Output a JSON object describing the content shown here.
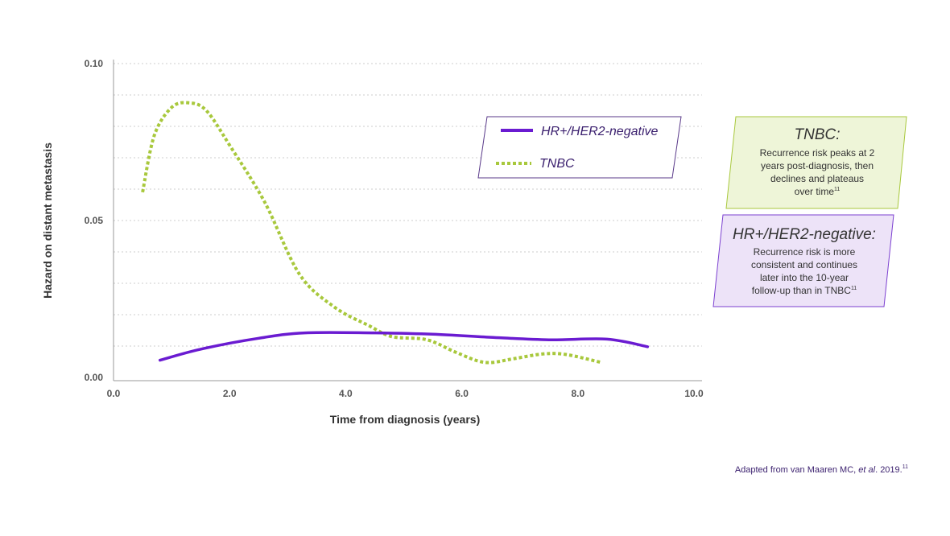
{
  "chart_data": {
    "type": "line",
    "xlabel": "Time from diagnosis (years)",
    "ylabel": "Hazard on distant metastasis",
    "xlim": [
      0,
      10
    ],
    "ylim": [
      0,
      0.1
    ],
    "xticks": [
      "0.0",
      "2.0",
      "4.0",
      "6.0",
      "8.0",
      "10.0"
    ],
    "yticks": [
      "0.00",
      "0.05",
      "0.10"
    ],
    "grid": "horizontal dotted",
    "legend_position": "top-right",
    "series": [
      {
        "name": "HR+/HER2-negative",
        "color": "#6a1bd1",
        "style": "solid",
        "x": [
          0.8,
          1.5,
          2.5,
          3.3,
          4.5,
          5.5,
          6.5,
          7.5,
          8.5,
          9.2
        ],
        "y": [
          0.0055,
          0.009,
          0.0125,
          0.0142,
          0.0142,
          0.0138,
          0.0128,
          0.012,
          0.0122,
          0.0098
        ]
      },
      {
        "name": "TNBC",
        "color": "#a8c83c",
        "style": "dotted",
        "x": [
          0.5,
          0.7,
          1.0,
          1.3,
          1.6,
          2.0,
          2.6,
          3.2,
          3.8,
          4.4,
          4.8,
          5.4,
          5.9,
          6.4,
          6.9,
          7.4,
          7.8,
          8.4
        ],
        "y": [
          0.059,
          0.077,
          0.086,
          0.0875,
          0.085,
          0.074,
          0.056,
          0.033,
          0.0225,
          0.0165,
          0.013,
          0.012,
          0.008,
          0.0048,
          0.006,
          0.0075,
          0.0073,
          0.0048
        ]
      }
    ]
  },
  "annotations": {
    "tnbc": {
      "title": "TNBC:",
      "lines": [
        "Recurrence risk peaks at 2",
        "years post-diagnosis, then",
        "declines and plateaus",
        "over time"
      ],
      "ref": "11",
      "bg": "#eef5d8",
      "border": "#a8c83c"
    },
    "hr": {
      "title": "HR+/HER2-negative:",
      "lines": [
        "Recurrence risk is more",
        "consistent and continues",
        "later into the 10-year",
        "follow-up than in TNBC"
      ],
      "ref": "11",
      "bg": "#ede3f8",
      "border": "#7b3fd0"
    }
  },
  "source": {
    "prefix": "Adapted from van Maaren MC, ",
    "italic": "et al",
    "suffix": ". 2019.",
    "ref": "11"
  }
}
